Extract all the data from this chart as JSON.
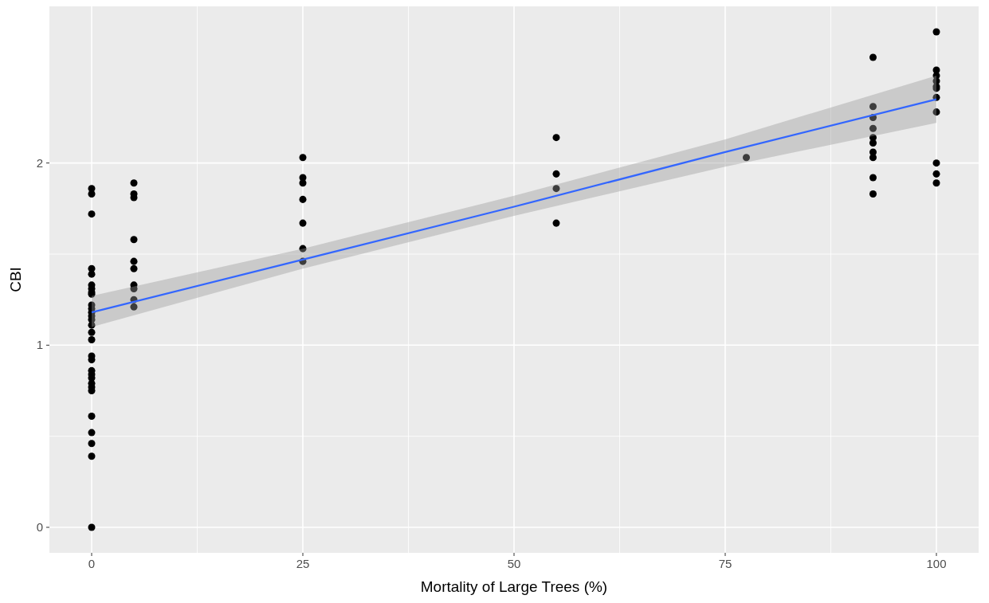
{
  "chart_data": {
    "type": "scatter",
    "xlabel": "Mortality of Large Trees (%)",
    "ylabel": "CBI",
    "xlim": [
      -5,
      105
    ],
    "ylim": [
      -0.14,
      2.86
    ],
    "xticks": [
      0,
      25,
      50,
      75,
      100
    ],
    "yticks": [
      0,
      1,
      2
    ],
    "grid": true,
    "series": [
      {
        "marker": "circle",
        "color": "#000000",
        "x": [
          0,
          0,
          0,
          0,
          0,
          0,
          0,
          0,
          0,
          0,
          0,
          0,
          0,
          0,
          0,
          0,
          0,
          0,
          0,
          0,
          0,
          0,
          0,
          0,
          0,
          0,
          0,
          0,
          0,
          0,
          5,
          5,
          5,
          5,
          5,
          5,
          5,
          5,
          5,
          5,
          25,
          25,
          25,
          25,
          25,
          25,
          25,
          55,
          55,
          55,
          55,
          77.5,
          92.5,
          92.5,
          92.5,
          92.5,
          92.5,
          92.5,
          92.5,
          92.5,
          92.5,
          92.5,
          100,
          100,
          100,
          100,
          100,
          100,
          100,
          100,
          100,
          100,
          100
        ],
        "values": [
          1.86,
          1.83,
          1.72,
          1.42,
          1.39,
          1.33,
          1.31,
          1.29,
          1.28,
          1.22,
          1.2,
          1.18,
          1.16,
          1.14,
          1.11,
          1.07,
          1.03,
          0.94,
          0.92,
          0.86,
          0.84,
          0.82,
          0.79,
          0.77,
          0.75,
          0.61,
          0.52,
          0.46,
          0.39,
          0,
          1.89,
          1.83,
          1.81,
          1.58,
          1.46,
          1.42,
          1.33,
          1.31,
          1.25,
          1.21,
          2.03,
          1.92,
          1.89,
          1.8,
          1.67,
          1.53,
          1.46,
          2.14,
          1.94,
          1.86,
          1.67,
          2.03,
          2.58,
          2.31,
          2.25,
          2.19,
          2.14,
          2.11,
          2.06,
          2.03,
          1.92,
          1.83,
          2.72,
          2.51,
          2.48,
          2.45,
          2.42,
          2.41,
          2.36,
          2.28,
          2,
          1.94,
          1.89
        ]
      },
      {
        "type": "line",
        "marker": "none",
        "color": "#3366ff",
        "x": [
          0,
          25,
          50,
          75,
          100
        ],
        "values": [
          1.18,
          1.47,
          1.76,
          2.06,
          2.35
        ],
        "lower": [
          1.1,
          1.42,
          1.71,
          1.98,
          2.22
        ],
        "upper": [
          1.27,
          1.53,
          1.82,
          2.13,
          2.48
        ]
      }
    ]
  }
}
